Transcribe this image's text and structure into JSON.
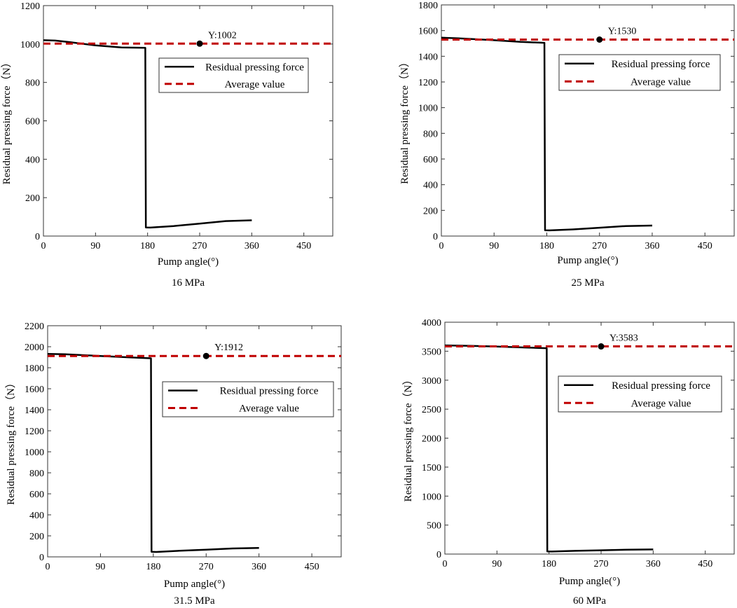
{
  "chart_data": [
    {
      "type": "line",
      "caption": "16 MPa",
      "xlabel": "Pump angle(°)",
      "ylabel": "Residual pressing force（N）",
      "xlim": [
        0,
        500
      ],
      "ylim": [
        0,
        1200
      ],
      "xticks": [
        0,
        90,
        180,
        270,
        360,
        450
      ],
      "yticks": [
        0,
        200,
        400,
        600,
        800,
        1000,
        1200
      ],
      "series": [
        {
          "name": "Residual pressing force",
          "color": "#000000",
          "style": "solid",
          "points": [
            [
              0,
              1020
            ],
            [
              20,
              1018
            ],
            [
              45,
              1010
            ],
            [
              90,
              993
            ],
            [
              135,
              982
            ],
            [
              176,
              980
            ],
            [
              177,
              45
            ],
            [
              185,
              44
            ],
            [
              225,
              52
            ],
            [
              270,
              65
            ],
            [
              315,
              78
            ],
            [
              360,
              82
            ]
          ]
        },
        {
          "name": "Average value",
          "color": "#c00000",
          "style": "dashed",
          "points": [
            [
              0,
              1002
            ],
            [
              500,
              1002
            ]
          ]
        }
      ],
      "marker": {
        "x": 270,
        "y": 1002,
        "label": "Y:1002"
      },
      "legend": {
        "location": "right-upper",
        "entries": [
          "Residual pressing force",
          "Average value"
        ]
      }
    },
    {
      "type": "line",
      "caption": "25 MPa",
      "xlabel": "Pump angle(°)",
      "ylabel": "Residual pressing force（N）",
      "xlim": [
        0,
        500
      ],
      "ylim": [
        0,
        1800
      ],
      "xticks": [
        0,
        90,
        180,
        270,
        360,
        450
      ],
      "yticks": [
        0,
        200,
        400,
        600,
        800,
        1000,
        1200,
        1400,
        1600,
        1800
      ],
      "series": [
        {
          "name": "Residual pressing force",
          "color": "#000000",
          "style": "solid",
          "points": [
            [
              0,
              1545
            ],
            [
              30,
              1540
            ],
            [
              90,
              1525
            ],
            [
              135,
              1512
            ],
            [
              176,
              1505
            ],
            [
              177,
              45
            ],
            [
              185,
              44
            ],
            [
              225,
              52
            ],
            [
              270,
              65
            ],
            [
              315,
              78
            ],
            [
              360,
              82
            ]
          ]
        },
        {
          "name": "Average value",
          "color": "#c00000",
          "style": "dashed",
          "points": [
            [
              0,
              1530
            ],
            [
              500,
              1530
            ]
          ]
        }
      ],
      "marker": {
        "x": 270,
        "y": 1530,
        "label": "Y:1530"
      },
      "legend": {
        "location": "right-upper",
        "entries": [
          "Residual pressing force",
          "Average value"
        ]
      }
    },
    {
      "type": "line",
      "caption": "31.5 MPa",
      "xlabel": "Pump angle(°)",
      "ylabel": "Residual pressing force（N）",
      "xlim": [
        0,
        500
      ],
      "ylim": [
        0,
        2200
      ],
      "xticks": [
        0,
        90,
        180,
        270,
        360,
        450
      ],
      "yticks": [
        0,
        200,
        400,
        600,
        800,
        1000,
        1200,
        1400,
        1600,
        1800,
        2000,
        2200
      ],
      "series": [
        {
          "name": "Residual pressing force",
          "color": "#000000",
          "style": "solid",
          "points": [
            [
              0,
              1932
            ],
            [
              30,
              1928
            ],
            [
              90,
              1912
            ],
            [
              135,
              1900
            ],
            [
              176,
              1890
            ],
            [
              177,
              48
            ],
            [
              185,
              47
            ],
            [
              225,
              58
            ],
            [
              270,
              68
            ],
            [
              315,
              80
            ],
            [
              360,
              85
            ]
          ]
        },
        {
          "name": "Average value",
          "color": "#c00000",
          "style": "dashed",
          "points": [
            [
              0,
              1912
            ],
            [
              500,
              1912
            ]
          ]
        }
      ],
      "marker": {
        "x": 270,
        "y": 1912,
        "label": "Y:1912"
      },
      "legend": {
        "location": "right-upper",
        "entries": [
          "Residual pressing force",
          "Average value"
        ]
      }
    },
    {
      "type": "line",
      "caption": "60 MPa",
      "xlabel": "Pump angle(°)",
      "ylabel": "Residual pressing force（N）",
      "xlim": [
        0,
        500
      ],
      "ylim": [
        0,
        4000
      ],
      "xticks": [
        0,
        90,
        180,
        270,
        360,
        450
      ],
      "yticks": [
        0,
        500,
        1000,
        1500,
        2000,
        2500,
        3000,
        3500,
        4000
      ],
      "series": [
        {
          "name": "Residual pressing force",
          "color": "#000000",
          "style": "solid",
          "points": [
            [
              0,
              3600
            ],
            [
              45,
              3592
            ],
            [
              90,
              3580
            ],
            [
              135,
              3565
            ],
            [
              176,
              3552
            ],
            [
              177,
              45
            ],
            [
              185,
              44
            ],
            [
              225,
              55
            ],
            [
              270,
              65
            ],
            [
              315,
              75
            ],
            [
              360,
              80
            ]
          ]
        },
        {
          "name": "Average value",
          "color": "#c00000",
          "style": "dashed",
          "points": [
            [
              0,
              3583
            ],
            [
              500,
              3583
            ]
          ]
        }
      ],
      "marker": {
        "x": 270,
        "y": 3583,
        "label": "Y:3583"
      },
      "legend": {
        "location": "right-upper",
        "entries": [
          "Residual pressing force",
          "Average value"
        ]
      }
    }
  ]
}
